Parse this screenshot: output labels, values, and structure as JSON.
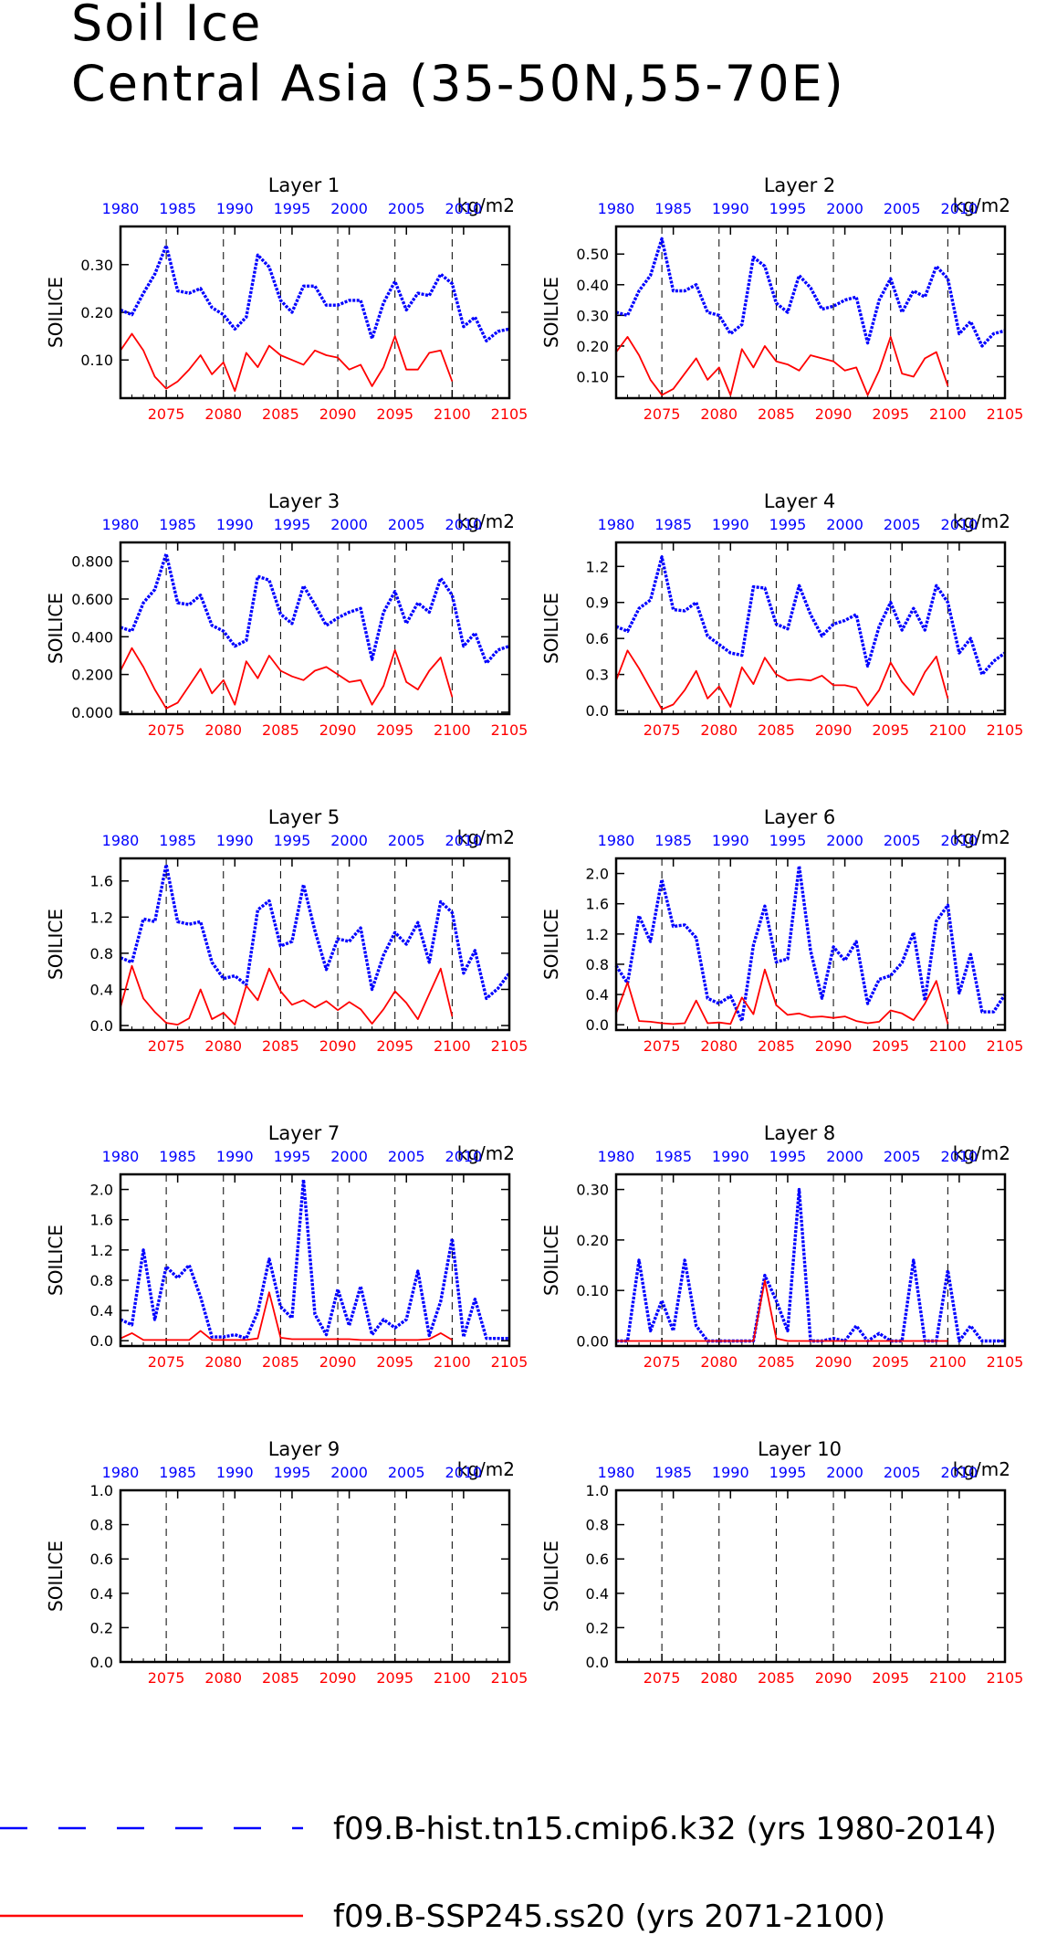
{
  "figure": {
    "title_line1": "Soil Ice",
    "title_line2": "Central Asia (35-50N,55-70E)",
    "colors": {
      "hist": "#0000ff",
      "ssp": "#ff0000",
      "axis": "#000000"
    },
    "legend": [
      {
        "name": "f09.B-hist.tn15.cmip6.k32 (yrs 1980-2014)",
        "color": "#0000ff",
        "style": "dashed"
      },
      {
        "name": "f09.B-SSP245.ss20 (yrs 2071-2100)",
        "color": "#ff0000",
        "style": "solid"
      }
    ]
  },
  "chart_data": [
    {
      "type": "line",
      "title": "Layer 1",
      "ylabel": "SOILICE",
      "units": "kg/m2",
      "ylim": [
        0.02,
        0.38
      ],
      "yticks": [
        0.1,
        0.2,
        0.3
      ],
      "ytick_labels": [
        "0.10",
        "0.20",
        "0.30"
      ],
      "x_top": [
        1980,
        2014
      ],
      "x_top_ticks": [
        1980,
        1985,
        1990,
        1995,
        2000,
        2005,
        2010
      ],
      "x_bottom": [
        2071,
        2105
      ],
      "x_bottom_ticks": [
        2075,
        2080,
        2085,
        2090,
        2095,
        2100,
        2105
      ],
      "series": [
        {
          "name": "f09.B-hist.tn15.cmip6.k32",
          "start_year": 1980,
          "values": [
            0.205,
            0.195,
            0.24,
            0.28,
            0.34,
            0.245,
            0.24,
            0.25,
            0.21,
            0.195,
            0.165,
            0.19,
            0.32,
            0.295,
            0.225,
            0.2,
            0.255,
            0.255,
            0.215,
            0.215,
            0.225,
            0.225,
            0.145,
            0.22,
            0.265,
            0.205,
            0.24,
            0.235,
            0.28,
            0.26,
            0.17,
            0.19,
            0.14,
            0.16,
            0.165
          ]
        },
        {
          "name": "f09.B-SSP245.ss20",
          "start_year": 2071,
          "values": [
            0.12,
            0.155,
            0.12,
            0.065,
            0.04,
            0.055,
            0.08,
            0.11,
            0.07,
            0.095,
            0.035,
            0.115,
            0.085,
            0.13,
            0.11,
            0.1,
            0.09,
            0.12,
            0.11,
            0.105,
            0.08,
            0.09,
            0.045,
            0.085,
            0.15,
            0.08,
            0.08,
            0.115,
            0.12,
            0.055
          ]
        }
      ]
    },
    {
      "type": "line",
      "title": "Layer 2",
      "ylabel": "SOILICE",
      "units": "kg/m2",
      "ylim": [
        0.03,
        0.59
      ],
      "yticks": [
        0.1,
        0.2,
        0.3,
        0.4,
        0.5
      ],
      "ytick_labels": [
        "0.10",
        "0.20",
        "0.30",
        "0.40",
        "0.50"
      ],
      "x_top": [
        1980,
        2014
      ],
      "x_top_ticks": [
        1980,
        1985,
        1990,
        1995,
        2000,
        2005,
        2010
      ],
      "x_bottom": [
        2071,
        2105
      ],
      "x_bottom_ticks": [
        2075,
        2080,
        2085,
        2090,
        2095,
        2100,
        2105
      ],
      "series": [
        {
          "name": "f09.B-hist.tn15.cmip6.k32",
          "start_year": 1980,
          "values": [
            0.31,
            0.3,
            0.38,
            0.43,
            0.55,
            0.38,
            0.38,
            0.4,
            0.31,
            0.3,
            0.24,
            0.27,
            0.49,
            0.46,
            0.34,
            0.31,
            0.43,
            0.39,
            0.32,
            0.33,
            0.35,
            0.36,
            0.21,
            0.35,
            0.42,
            0.31,
            0.38,
            0.36,
            0.46,
            0.42,
            0.24,
            0.28,
            0.2,
            0.24,
            0.25
          ]
        },
        {
          "name": "f09.B-SSP245.ss20",
          "start_year": 2071,
          "values": [
            0.18,
            0.23,
            0.17,
            0.09,
            0.04,
            0.06,
            0.11,
            0.16,
            0.09,
            0.13,
            0.04,
            0.19,
            0.13,
            0.2,
            0.15,
            0.14,
            0.12,
            0.17,
            0.16,
            0.15,
            0.12,
            0.13,
            0.04,
            0.12,
            0.23,
            0.11,
            0.1,
            0.16,
            0.18,
            0.07
          ]
        }
      ]
    },
    {
      "type": "line",
      "title": "Layer 3",
      "ylabel": "SOILICE",
      "units": "kg/m2",
      "ylim": [
        -0.01,
        0.9
      ],
      "yticks": [
        0.0,
        0.2,
        0.4,
        0.6,
        0.8
      ],
      "ytick_labels": [
        "0.000",
        "0.200",
        "0.400",
        "0.600",
        "0.800"
      ],
      "x_top": [
        1980,
        2014
      ],
      "x_top_ticks": [
        1980,
        1985,
        1990,
        1995,
        2000,
        2005,
        2010
      ],
      "x_bottom": [
        2071,
        2105
      ],
      "x_bottom_ticks": [
        2075,
        2080,
        2085,
        2090,
        2095,
        2100,
        2105
      ],
      "series": [
        {
          "name": "f09.B-hist.tn15.cmip6.k32",
          "start_year": 1980,
          "values": [
            0.45,
            0.43,
            0.58,
            0.65,
            0.84,
            0.58,
            0.57,
            0.62,
            0.46,
            0.43,
            0.35,
            0.38,
            0.72,
            0.7,
            0.52,
            0.47,
            0.67,
            0.57,
            0.46,
            0.5,
            0.53,
            0.55,
            0.28,
            0.53,
            0.64,
            0.47,
            0.58,
            0.53,
            0.71,
            0.62,
            0.35,
            0.42,
            0.26,
            0.33,
            0.35
          ]
        },
        {
          "name": "f09.B-SSP245.ss20",
          "start_year": 2071,
          "values": [
            0.22,
            0.34,
            0.24,
            0.12,
            0.02,
            0.05,
            0.14,
            0.23,
            0.1,
            0.17,
            0.04,
            0.27,
            0.18,
            0.3,
            0.22,
            0.19,
            0.17,
            0.22,
            0.24,
            0.2,
            0.16,
            0.17,
            0.04,
            0.14,
            0.33,
            0.16,
            0.12,
            0.22,
            0.29,
            0.08
          ]
        }
      ]
    },
    {
      "type": "line",
      "title": "Layer 4",
      "ylabel": "SOILICE",
      "units": "kg/m2",
      "ylim": [
        -0.03,
        1.4
      ],
      "yticks": [
        0.0,
        0.3,
        0.6,
        0.9,
        1.2
      ],
      "ytick_labels": [
        "0.0",
        "0.3",
        "0.6",
        "0.9",
        "1.2"
      ],
      "x_top": [
        1980,
        2014
      ],
      "x_top_ticks": [
        1980,
        1985,
        1990,
        1995,
        2000,
        2005,
        2010
      ],
      "x_bottom": [
        2071,
        2105
      ],
      "x_bottom_ticks": [
        2075,
        2080,
        2085,
        2090,
        2095,
        2100,
        2105
      ],
      "series": [
        {
          "name": "f09.B-hist.tn15.cmip6.k32",
          "start_year": 1980,
          "values": [
            0.7,
            0.66,
            0.85,
            0.92,
            1.28,
            0.84,
            0.83,
            0.9,
            0.62,
            0.55,
            0.48,
            0.46,
            1.03,
            1.02,
            0.72,
            0.68,
            1.04,
            0.8,
            0.62,
            0.72,
            0.75,
            0.8,
            0.37,
            0.7,
            0.9,
            0.67,
            0.85,
            0.67,
            1.04,
            0.9,
            0.48,
            0.6,
            0.3,
            0.41,
            0.48
          ]
        },
        {
          "name": "f09.B-SSP245.ss20",
          "start_year": 2071,
          "values": [
            0.25,
            0.5,
            0.35,
            0.18,
            0.01,
            0.05,
            0.17,
            0.33,
            0.1,
            0.2,
            0.03,
            0.36,
            0.22,
            0.44,
            0.3,
            0.25,
            0.26,
            0.25,
            0.29,
            0.21,
            0.21,
            0.19,
            0.04,
            0.17,
            0.4,
            0.24,
            0.13,
            0.32,
            0.45,
            0.1
          ]
        }
      ]
    },
    {
      "type": "line",
      "title": "Layer 5",
      "ylabel": "SOILICE",
      "units": "kg/m2",
      "ylim": [
        -0.05,
        1.85
      ],
      "yticks": [
        0.0,
        0.4,
        0.8,
        1.2,
        1.6
      ],
      "ytick_labels": [
        "0.0",
        "0.4",
        "0.8",
        "1.2",
        "1.6"
      ],
      "x_top": [
        1980,
        2014
      ],
      "x_top_ticks": [
        1980,
        1985,
        1990,
        1995,
        2000,
        2005,
        2010
      ],
      "x_bottom": [
        2071,
        2105
      ],
      "x_bottom_ticks": [
        2075,
        2080,
        2085,
        2090,
        2095,
        2100,
        2105
      ],
      "series": [
        {
          "name": "f09.B-hist.tn15.cmip6.k32",
          "start_year": 1980,
          "values": [
            0.75,
            0.7,
            1.18,
            1.15,
            1.78,
            1.15,
            1.12,
            1.15,
            0.7,
            0.52,
            0.55,
            0.45,
            1.28,
            1.38,
            0.88,
            0.93,
            1.56,
            1.05,
            0.62,
            0.96,
            0.93,
            1.08,
            0.4,
            0.78,
            1.03,
            0.9,
            1.14,
            0.7,
            1.37,
            1.25,
            0.58,
            0.83,
            0.3,
            0.41,
            0.58
          ]
        },
        {
          "name": "f09.B-SSP245.ss20",
          "start_year": 2071,
          "values": [
            0.2,
            0.66,
            0.3,
            0.15,
            0.03,
            0.01,
            0.08,
            0.4,
            0.07,
            0.14,
            0.01,
            0.44,
            0.28,
            0.63,
            0.38,
            0.23,
            0.28,
            0.2,
            0.27,
            0.17,
            0.26,
            0.18,
            0.02,
            0.18,
            0.38,
            0.25,
            0.07,
            0.35,
            0.63,
            0.1
          ]
        }
      ]
    },
    {
      "type": "line",
      "title": "Layer 6",
      "ylabel": "SOILICE",
      "units": "kg/m2",
      "ylim": [
        -0.07,
        2.2
      ],
      "yticks": [
        0.0,
        0.4,
        0.8,
        1.2,
        1.6,
        2.0
      ],
      "ytick_labels": [
        "0.0",
        "0.4",
        "0.8",
        "1.2",
        "1.6",
        "2.0"
      ],
      "x_top": [
        1980,
        2014
      ],
      "x_top_ticks": [
        1980,
        1985,
        1990,
        1995,
        2000,
        2005,
        2010
      ],
      "x_bottom": [
        2071,
        2105
      ],
      "x_bottom_ticks": [
        2075,
        2080,
        2085,
        2090,
        2095,
        2100,
        2105
      ],
      "series": [
        {
          "name": "f09.B-hist.tn15.cmip6.k32",
          "start_year": 1980,
          "values": [
            0.78,
            0.55,
            1.44,
            1.1,
            1.92,
            1.3,
            1.32,
            1.15,
            0.35,
            0.28,
            0.38,
            0.05,
            1.05,
            1.57,
            0.83,
            0.87,
            2.1,
            0.98,
            0.35,
            1.03,
            0.85,
            1.1,
            0.28,
            0.6,
            0.65,
            0.82,
            1.22,
            0.32,
            1.37,
            1.58,
            0.42,
            0.93,
            0.17,
            0.17,
            0.4
          ]
        },
        {
          "name": "f09.B-SSP245.ss20",
          "start_year": 2071,
          "values": [
            0.15,
            0.56,
            0.05,
            0.04,
            0.02,
            0.01,
            0.02,
            0.32,
            0.02,
            0.03,
            0.01,
            0.36,
            0.14,
            0.73,
            0.26,
            0.13,
            0.15,
            0.1,
            0.11,
            0.09,
            0.11,
            0.05,
            0.02,
            0.04,
            0.19,
            0.15,
            0.06,
            0.28,
            0.58,
            0.01
          ]
        }
      ]
    },
    {
      "type": "line",
      "title": "Layer 7",
      "ylabel": "SOILICE",
      "units": "kg/m2",
      "ylim": [
        -0.07,
        2.2
      ],
      "yticks": [
        0.0,
        0.4,
        0.8,
        1.2,
        1.6,
        2.0
      ],
      "ytick_labels": [
        "0.0",
        "0.4",
        "0.8",
        "1.2",
        "1.6",
        "2.0"
      ],
      "x_top": [
        1980,
        2014
      ],
      "x_top_ticks": [
        1980,
        1985,
        1990,
        1995,
        2000,
        2005,
        2010
      ],
      "x_bottom": [
        2071,
        2105
      ],
      "x_bottom_ticks": [
        2075,
        2080,
        2085,
        2090,
        2095,
        2100,
        2105
      ],
      "series": [
        {
          "name": "f09.B-hist.tn15.cmip6.k32",
          "start_year": 1980,
          "values": [
            0.28,
            0.21,
            1.2,
            0.28,
            0.98,
            0.83,
            1.0,
            0.58,
            0.05,
            0.05,
            0.08,
            0.03,
            0.38,
            1.08,
            0.45,
            0.3,
            2.13,
            0.35,
            0.08,
            0.68,
            0.2,
            0.72,
            0.08,
            0.28,
            0.17,
            0.28,
            0.92,
            0.07,
            0.52,
            1.35,
            0.05,
            0.55,
            0.03,
            0.03,
            0.03
          ]
        },
        {
          "name": "f09.B-SSP245.ss20",
          "start_year": 2071,
          "values": [
            0.03,
            0.1,
            0.01,
            0.01,
            0.01,
            0.01,
            0.01,
            0.13,
            0.01,
            0.01,
            0.01,
            0.01,
            0.03,
            0.64,
            0.04,
            0.02,
            0.02,
            0.02,
            0.02,
            0.02,
            0.02,
            0.01,
            0.01,
            0.01,
            0.01,
            0.01,
            0.01,
            0.02,
            0.1,
            0.01
          ]
        }
      ]
    },
    {
      "type": "line",
      "title": "Layer 8",
      "ylabel": "SOILICE",
      "units": "kg/m2",
      "ylim": [
        -0.01,
        0.33
      ],
      "yticks": [
        0.0,
        0.1,
        0.2,
        0.3
      ],
      "ytick_labels": [
        "0.00",
        "0.10",
        "0.20",
        "0.30"
      ],
      "x_top": [
        1980,
        2014
      ],
      "x_top_ticks": [
        1980,
        1985,
        1990,
        1995,
        2000,
        2005,
        2010
      ],
      "x_bottom": [
        2071,
        2105
      ],
      "x_bottom_ticks": [
        2075,
        2080,
        2085,
        2090,
        2095,
        2100,
        2105
      ],
      "series": [
        {
          "name": "f09.B-hist.tn15.cmip6.k32",
          "start_year": 1980,
          "values": [
            0.0,
            0.0,
            0.16,
            0.02,
            0.08,
            0.02,
            0.16,
            0.03,
            0.0,
            0.0,
            0.0,
            0.0,
            0.0,
            0.13,
            0.08,
            0.02,
            0.3,
            0.0,
            0.0,
            0.005,
            0.0,
            0.03,
            0.0,
            0.015,
            0.0,
            0.0,
            0.16,
            0.0,
            0.0,
            0.14,
            0.0,
            0.03,
            0.0,
            0.0,
            0.0
          ]
        },
        {
          "name": "f09.B-SSP245.ss20",
          "start_year": 2071,
          "values": [
            0.0,
            0.0,
            0.0,
            0.0,
            0.0,
            0.0,
            0.0,
            0.0,
            0.0,
            0.0,
            0.0,
            0.0,
            0.0,
            0.12,
            0.005,
            0.0,
            0.0,
            0.0,
            0.0,
            0.0,
            0.0,
            0.0,
            0.0,
            0.0,
            0.0,
            0.0,
            0.0,
            0.0,
            0.0,
            0.0
          ]
        }
      ]
    },
    {
      "type": "line",
      "title": "Layer 9",
      "ylabel": "SOILICE",
      "units": "kg/m2",
      "ylim": [
        0.0,
        1.0
      ],
      "yticks": [
        0.0,
        0.2,
        0.4,
        0.6,
        0.8,
        1.0
      ],
      "ytick_labels": [
        "0.0",
        "0.2",
        "0.4",
        "0.6",
        "0.8",
        "1.0"
      ],
      "x_top": [
        1980,
        2014
      ],
      "x_top_ticks": [
        1980,
        1985,
        1990,
        1995,
        2000,
        2005,
        2010
      ],
      "x_bottom": [
        2071,
        2105
      ],
      "x_bottom_ticks": [
        2075,
        2080,
        2085,
        2090,
        2095,
        2100,
        2105
      ],
      "series": []
    },
    {
      "type": "line",
      "title": "Layer 10",
      "ylabel": "SOILICE",
      "units": "kg/m2",
      "ylim": [
        0.0,
        1.0
      ],
      "yticks": [
        0.0,
        0.2,
        0.4,
        0.6,
        0.8,
        1.0
      ],
      "ytick_labels": [
        "0.0",
        "0.2",
        "0.4",
        "0.6",
        "0.8",
        "1.0"
      ],
      "x_top": [
        1980,
        2014
      ],
      "x_top_ticks": [
        1980,
        1985,
        1990,
        1995,
        2000,
        2005,
        2010
      ],
      "x_bottom": [
        2071,
        2105
      ],
      "x_bottom_ticks": [
        2075,
        2080,
        2085,
        2090,
        2095,
        2100,
        2105
      ],
      "series": []
    }
  ]
}
